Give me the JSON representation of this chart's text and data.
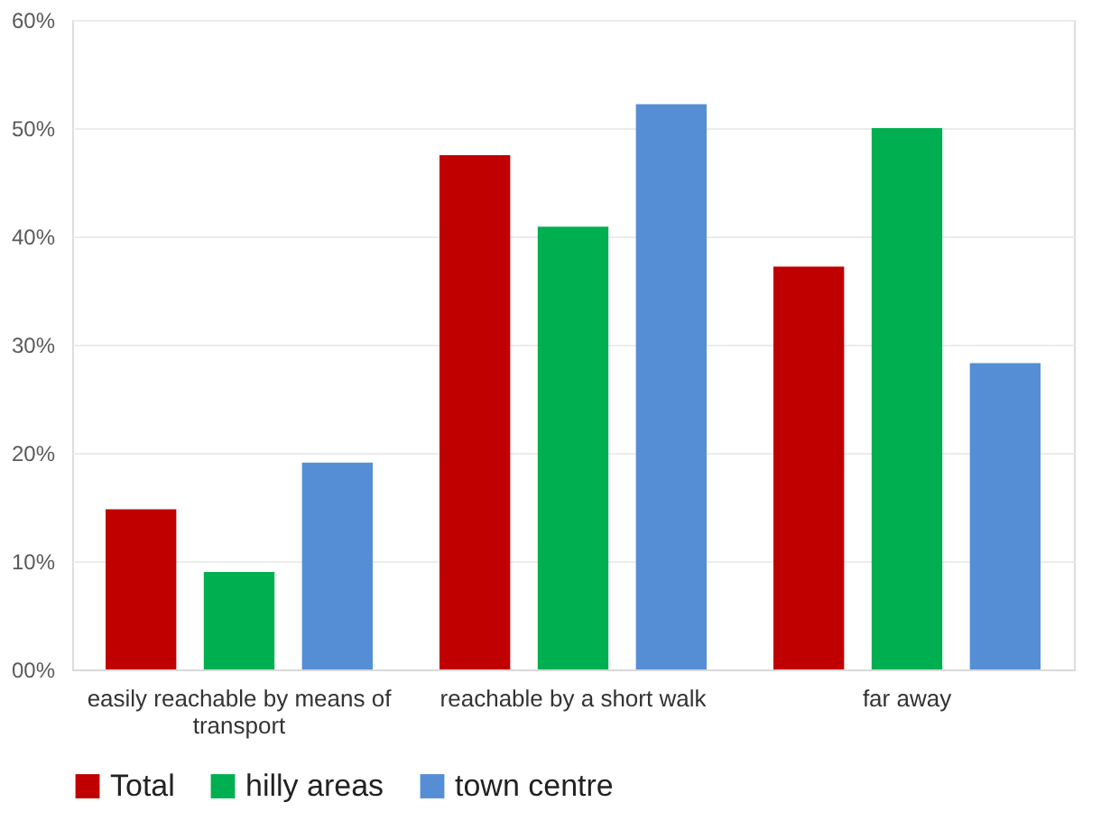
{
  "chart_data": {
    "type": "bar",
    "categories": [
      "easily reachable by means of transport",
      "reachable by a short walk",
      "far away"
    ],
    "series": [
      {
        "name": "Total",
        "color": "#c00000",
        "values": [
          14.8,
          47.5,
          37.2
        ]
      },
      {
        "name": "hilly areas",
        "color": "#00b050",
        "values": [
          9.0,
          40.9,
          50.0
        ]
      },
      {
        "name": "town centre",
        "color": "#558ed5",
        "values": [
          19.1,
          52.2,
          28.3
        ]
      }
    ],
    "ylim": [
      0,
      60
    ],
    "yticks": [
      {
        "value": 0,
        "label": "00%"
      },
      {
        "value": 10,
        "label": "10%"
      },
      {
        "value": 20,
        "label": "20%"
      },
      {
        "value": 30,
        "label": "30%"
      },
      {
        "value": 40,
        "label": "40%"
      },
      {
        "value": 50,
        "label": "50%"
      },
      {
        "value": 60,
        "label": "60%"
      }
    ],
    "grid": "y",
    "legend": "bottom"
  }
}
